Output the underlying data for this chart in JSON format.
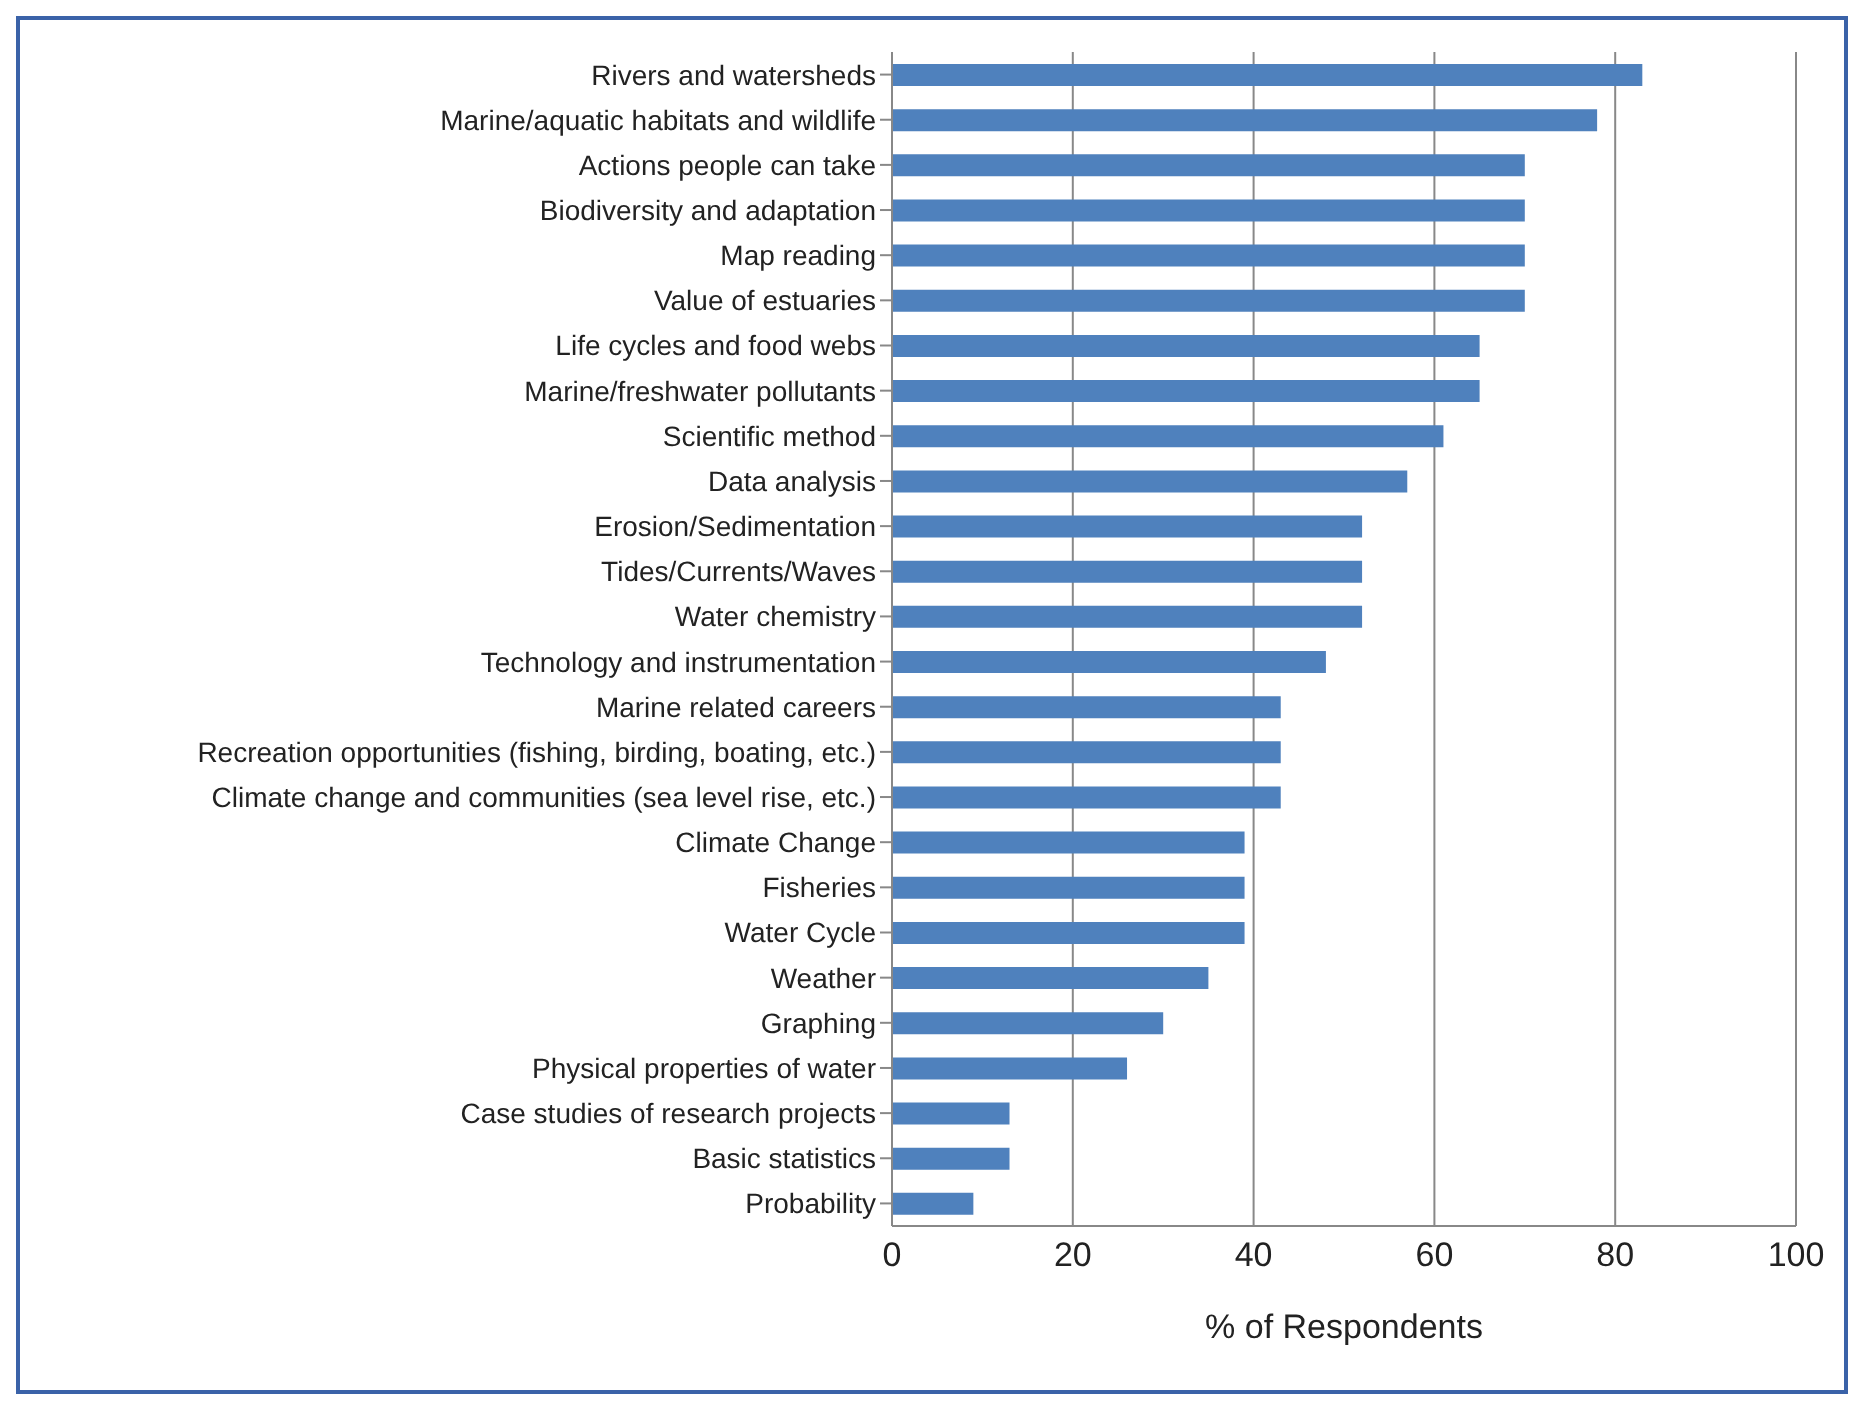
{
  "chart_data": {
    "type": "bar",
    "orientation": "horizontal",
    "xlabel": "% of Respondents",
    "categories": [
      "Rivers and watersheds",
      "Marine/aquatic habitats and wildlife",
      "Actions people can take",
      "Biodiversity and adaptation",
      "Map reading",
      "Value of estuaries",
      "Life cycles and food webs",
      "Marine/freshwater pollutants",
      "Scientific method",
      "Data analysis",
      "Erosion/Sedimentation",
      "Tides/Currents/Waves",
      "Water chemistry",
      "Technology and instrumentation",
      "Marine related careers",
      "Recreation opportunities (fishing, birding, boating, etc.)",
      "Climate change and communities (sea level rise, etc.)",
      "Climate Change",
      "Fisheries",
      "Water Cycle",
      "Weather",
      "Graphing",
      "Physical properties of water",
      "Case studies of research projects",
      "Basic statistics",
      "Probability"
    ],
    "values": [
      83,
      78,
      70,
      70,
      70,
      70,
      65,
      65,
      61,
      57,
      52,
      52,
      52,
      48,
      43,
      43,
      43,
      39,
      39,
      39,
      35,
      30,
      26,
      13,
      13,
      9
    ],
    "color": "#4f81bd",
    "xlim": [
      0,
      100
    ],
    "xticks": [
      0,
      20,
      40,
      60,
      80,
      100
    ],
    "grid": "x",
    "legend": false
  }
}
